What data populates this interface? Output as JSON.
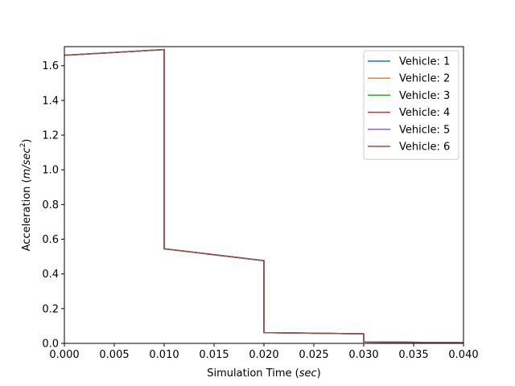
{
  "chart_data": {
    "type": "line",
    "title": "",
    "xlabel": "Simulation Time",
    "xlabel_unit": "sec",
    "ylabel": "Acceleration",
    "ylabel_unit_base": "m/sec",
    "ylabel_unit_exp": "2",
    "xlim": [
      0.0,
      0.04
    ],
    "ylim": [
      0.0,
      1.71
    ],
    "xticks": [
      0.0,
      0.005,
      0.01,
      0.015,
      0.02,
      0.025,
      0.03,
      0.035,
      0.04
    ],
    "xtick_labels": [
      "0.000",
      "0.005",
      "0.010",
      "0.015",
      "0.020",
      "0.025",
      "0.030",
      "0.035",
      "0.040"
    ],
    "yticks": [
      0.0,
      0.2,
      0.4,
      0.6,
      0.8,
      1.0,
      1.2,
      1.4,
      1.6
    ],
    "ytick_labels": [
      "0.0",
      "0.2",
      "0.4",
      "0.6",
      "0.8",
      "1.0",
      "1.2",
      "1.4",
      "1.6"
    ],
    "grid": false,
    "legend_position": "top-right",
    "series": [
      {
        "name": "Vehicle: 1",
        "color": "#1f77b4",
        "x": [
          0.0,
          0.01,
          0.01,
          0.02,
          0.02,
          0.03,
          0.03,
          0.04
        ],
        "y": [
          1.66,
          1.693,
          0.545,
          0.477,
          0.062,
          0.055,
          0.008,
          0.004
        ]
      },
      {
        "name": "Vehicle: 2",
        "color": "#ff7f0e",
        "x": [
          0.0,
          0.01,
          0.01,
          0.02,
          0.02,
          0.03,
          0.03,
          0.04
        ],
        "y": [
          1.66,
          1.693,
          0.545,
          0.477,
          0.062,
          0.055,
          0.008,
          0.004
        ]
      },
      {
        "name": "Vehicle: 3",
        "color": "#2ca02c",
        "x": [
          0.0,
          0.01,
          0.01,
          0.02,
          0.02,
          0.03,
          0.03,
          0.04
        ],
        "y": [
          1.66,
          1.693,
          0.545,
          0.477,
          0.062,
          0.055,
          0.008,
          0.004
        ]
      },
      {
        "name": "Vehicle: 4",
        "color": "#d62728",
        "x": [
          0.0,
          0.01,
          0.01,
          0.02,
          0.02,
          0.03,
          0.03,
          0.04
        ],
        "y": [
          1.66,
          1.693,
          0.545,
          0.477,
          0.062,
          0.055,
          0.008,
          0.004
        ]
      },
      {
        "name": "Vehicle: 5",
        "color": "#9467bd",
        "x": [
          0.0,
          0.01,
          0.01,
          0.02,
          0.02,
          0.03,
          0.03,
          0.04
        ],
        "y": [
          1.66,
          1.693,
          0.545,
          0.477,
          0.062,
          0.055,
          0.008,
          0.004
        ]
      },
      {
        "name": "Vehicle: 6",
        "color": "#8c564b",
        "x": [
          0.0,
          0.01,
          0.01,
          0.02,
          0.02,
          0.03,
          0.03,
          0.04
        ],
        "y": [
          1.66,
          1.693,
          0.545,
          0.477,
          0.062,
          0.055,
          0.008,
          0.004
        ]
      }
    ]
  }
}
